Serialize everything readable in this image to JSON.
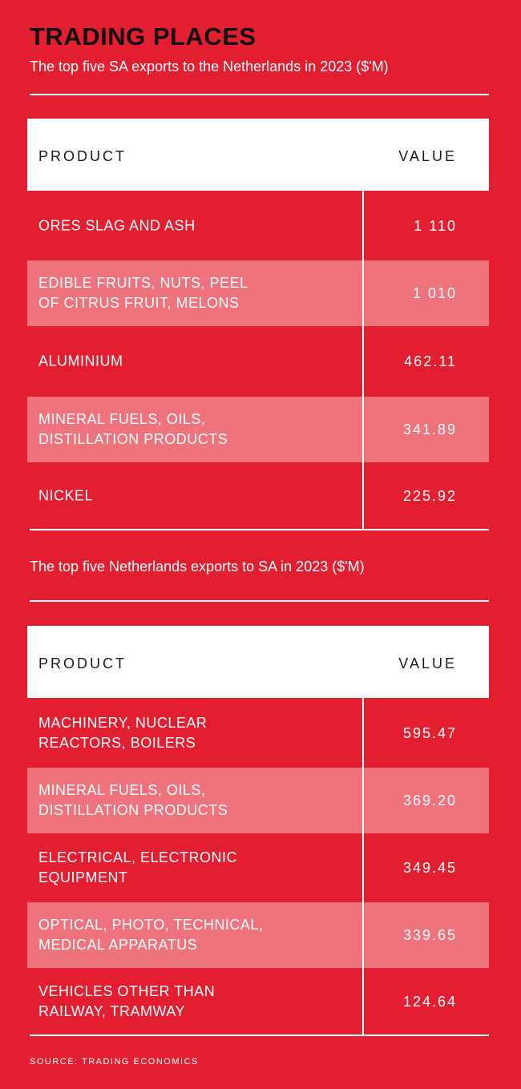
{
  "title": "TRADING PLACES",
  "table1": {
    "subtitle": "The top five SA exports to the Netherlands in 2023 ($'M)",
    "header": {
      "product": "PRODUCT",
      "value": "VALUE"
    },
    "rows": [
      {
        "product": "ORES SLAG AND ASH",
        "value": "1 110"
      },
      {
        "product": "EDIBLE FRUITS, NUTS, PEEL\nOF CITRUS FRUIT, MELONS",
        "value": "1 010"
      },
      {
        "product": "ALUMINIUM",
        "value": "462.11"
      },
      {
        "product": "MINERAL FUELS, OILS,\nDISTILLATION PRODUCTS",
        "value": "341.89"
      },
      {
        "product": "NICKEL",
        "value": "225.92"
      }
    ]
  },
  "table2": {
    "subtitle": "The top five Netherlands exports to SA in 2023 ($'M)",
    "header": {
      "product": "PRODUCT",
      "value": "VALUE"
    },
    "rows": [
      {
        "product": "MACHINERY, NUCLEAR\nREACTORS, BOILERS",
        "value": "595.47"
      },
      {
        "product": "MINERAL FUELS, OILS,\nDISTILLATION PRODUCTS",
        "value": "369.20"
      },
      {
        "product": "ELECTRICAL, ELECTRONIC\nEQUIPMENT",
        "value": "349.45"
      },
      {
        "product": "OPTICAL, PHOTO, TECHNICAL,\nMEDICAL APPARATUS",
        "value": "339.65"
      },
      {
        "product": "VEHICLES OTHER THAN\nRAILWAY, TRAMWAY",
        "value": "124.64"
      }
    ]
  },
  "source": "SOURCE: TRADING ECONOMICS",
  "colors": {
    "background": "#e31e30",
    "shaded_row": "#ee737c",
    "title": "#111111",
    "header_bg": "#ffffff"
  }
}
